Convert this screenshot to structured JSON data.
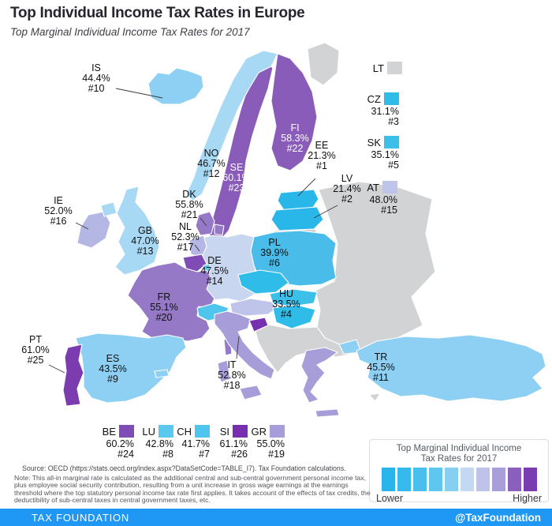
{
  "header": {
    "title": "Top Individual Income Tax Rates in Europe",
    "subtitle": "Top Marginal Individual Income Tax Rates for 2017"
  },
  "map": {
    "no_data_color": "#d2d3d5",
    "countries": [
      {
        "code": "IS",
        "value": "44.4%",
        "rank": "#10",
        "color": "#8dd0f3",
        "text": "dark"
      },
      {
        "code": "NO",
        "value": "46.7%",
        "rank": "#12",
        "color": "#a7d9f5",
        "text": "dark"
      },
      {
        "code": "SE",
        "value": "60.1%",
        "rank": "#23",
        "color": "#8a5cb9",
        "text": "light"
      },
      {
        "code": "FI",
        "value": "58.3%",
        "rank": "#22",
        "color": "#8a5cb9",
        "text": "light"
      },
      {
        "code": "DK",
        "value": "55.8%",
        "rank": "#21",
        "color": "#9579c7",
        "text": "dark"
      },
      {
        "code": "EE",
        "value": "21.3%",
        "rank": "#1",
        "color": "#29b7e9",
        "text": "dark"
      },
      {
        "code": "LV",
        "value": "21.4%",
        "rank": "#2",
        "color": "#29b7e9",
        "text": "dark"
      },
      {
        "code": "IE",
        "value": "52.0%",
        "rank": "#16",
        "color": "#b4b7e3",
        "text": "dark"
      },
      {
        "code": "GB",
        "value": "47.0%",
        "rank": "#13",
        "color": "#a7d9f5",
        "text": "dark"
      },
      {
        "code": "NL",
        "value": "52.3%",
        "rank": "#17",
        "color": "#b4b7e3",
        "text": "dark"
      },
      {
        "code": "DE",
        "value": "47.5%",
        "rank": "#14",
        "color": "#c9d6f0",
        "text": "dark"
      },
      {
        "code": "PL",
        "value": "39.9%",
        "rank": "#6",
        "color": "#49bce9",
        "text": "dark"
      },
      {
        "code": "HU",
        "value": "33.5%",
        "rank": "#4",
        "color": "#2fbce9",
        "text": "dark"
      },
      {
        "code": "FR",
        "value": "55.1%",
        "rank": "#20",
        "color": "#9579c7",
        "text": "dark"
      },
      {
        "code": "IT",
        "value": "52.8%",
        "rank": "#18",
        "color": "#a79dd8",
        "text": "dark"
      },
      {
        "code": "ES",
        "value": "43.5%",
        "rank": "#9",
        "color": "#8dd0f3",
        "text": "dark"
      },
      {
        "code": "PT",
        "value": "61.0%",
        "rank": "#25",
        "color": "#7b3cb0",
        "text": "dark"
      },
      {
        "code": "TR",
        "value": "45.5%",
        "rank": "#11",
        "color": "#8dd0f3",
        "text": "dark"
      }
    ]
  },
  "callouts_right": [
    {
      "code": "LT",
      "value": "",
      "rank": "",
      "color": "#d2d3d5"
    },
    {
      "code": "CZ",
      "value": "31.1%",
      "rank": "#3",
      "color": "#2fbce9"
    },
    {
      "code": "SK",
      "value": "35.1%",
      "rank": "#5",
      "color": "#3cc0ea"
    },
    {
      "code": "AT",
      "value": "48.0%",
      "rank": "#15",
      "color": "#bfc4ea"
    }
  ],
  "callouts_bottom": [
    {
      "code": "BE",
      "value": "60.2%",
      "rank": "#24",
      "color": "#7f4cb5"
    },
    {
      "code": "LU",
      "value": "42.8%",
      "rank": "#8",
      "color": "#5bc8ee"
    },
    {
      "code": "CH",
      "value": "41.7%",
      "rank": "#7",
      "color": "#4fc4ed"
    },
    {
      "code": "SI",
      "value": "61.1%",
      "rank": "#26",
      "color": "#772fb0"
    },
    {
      "code": "GR",
      "value": "55.0%",
      "rank": "#19",
      "color": "#a79dd8"
    }
  ],
  "legend": {
    "title_line1": "Top Marginal Individual Income",
    "title_line2": "Tax Rates for 2017",
    "lower": "Lower",
    "higher": "Higher",
    "swatches": [
      "#29b4ea",
      "#36b9ec",
      "#49bfed",
      "#5ec6ef",
      "#85cff3",
      "#c4d8f2",
      "#bfc2e9",
      "#a89fd9",
      "#8b60bc",
      "#7a3db0"
    ]
  },
  "source": "Source:  OECD (https://stats.oecd.org/index.aspx?DataSetCode=TABLE_I7). Tax Foundation calculations.",
  "note": "Note: This all-in marginal rate is calculated as the additional central and sub-central government personal income tax, plus employee social security contribution, resulting from a unit increase in gross wage earnings at the earnings threshold where the top statutory personal income tax rate first applies. It takes account of the effects of tax credits, the deductibility of sub-central taxes in central government taxes, etc.",
  "footer": {
    "brand": "TAX FOUNDATION",
    "handle": "@TaxFoundation",
    "color": "#1f97f4"
  }
}
